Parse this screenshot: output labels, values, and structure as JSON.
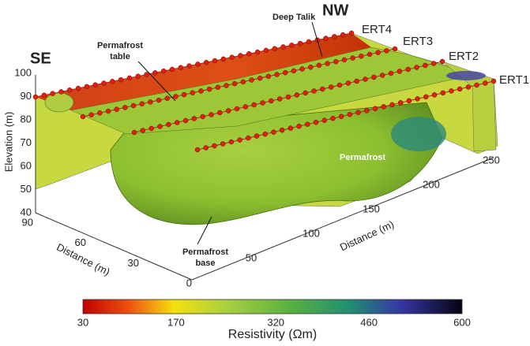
{
  "labels": {
    "se": "SE",
    "nw": "NW",
    "ert1": "ERT1",
    "ert2": "ERT2",
    "ert3": "ERT3",
    "ert4": "ERT4",
    "deep_talik": "Deep Talik",
    "permafrost_table": [
      "Permafrost",
      "table"
    ],
    "permafrost": "Permafrost",
    "permafrost_base": [
      "Permafrost",
      "base"
    ]
  },
  "elevation_axis": {
    "label": "Elevation (m)",
    "ticks": [
      100,
      90,
      80,
      70,
      60,
      50,
      40
    ]
  },
  "distance_axis_left": {
    "label": "Distance (m)",
    "ticks": [
      90,
      60,
      30,
      0
    ]
  },
  "distance_axis_right": {
    "label": "Distance (m)",
    "ticks": [
      50,
      100,
      150,
      200,
      250
    ]
  },
  "colorbar": {
    "label": "Resistivity (Ωm)",
    "ticks": [
      30,
      170,
      320,
      460,
      600
    ]
  }
}
